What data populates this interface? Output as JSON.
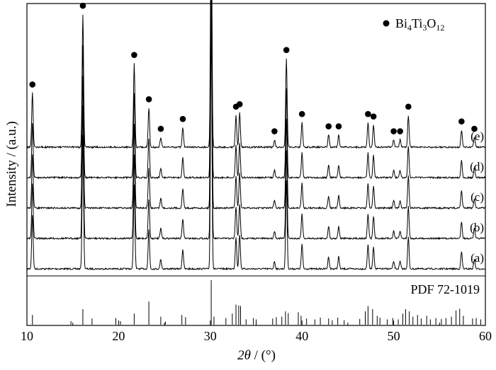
{
  "chart_data": {
    "type": "line",
    "xlabel_symbol": "2θ",
    "xlabel_unit": " / (°)",
    "ylabel": "Intensity / (a.u.)",
    "xlim": [
      10,
      60
    ],
    "xticks": [
      10,
      20,
      30,
      40,
      50,
      60
    ],
    "grid": false,
    "legend": {
      "position": "top-right",
      "marker": "filled-circle",
      "text_parts": [
        "Bi",
        "4",
        "Ti",
        "3",
        "O",
        "12"
      ]
    },
    "peaks": [
      {
        "x": 10.6,
        "h": 0.22
      },
      {
        "x": 16.1,
        "h": 0.54
      },
      {
        "x": 21.7,
        "h": 0.34
      },
      {
        "x": 23.3,
        "h": 0.16
      },
      {
        "x": 24.6,
        "h": 0.04
      },
      {
        "x": 27.0,
        "h": 0.08
      },
      {
        "x": 30.1,
        "h": 1.0
      },
      {
        "x": 32.8,
        "h": 0.13
      },
      {
        "x": 33.2,
        "h": 0.14
      },
      {
        "x": 37.0,
        "h": 0.03
      },
      {
        "x": 38.3,
        "h": 0.36
      },
      {
        "x": 40.0,
        "h": 0.1
      },
      {
        "x": 42.9,
        "h": 0.05
      },
      {
        "x": 44.0,
        "h": 0.05
      },
      {
        "x": 47.2,
        "h": 0.1
      },
      {
        "x": 47.8,
        "h": 0.09
      },
      {
        "x": 50.0,
        "h": 0.03
      },
      {
        "x": 50.7,
        "h": 0.03
      },
      {
        "x": 51.6,
        "h": 0.13
      },
      {
        "x": 57.4,
        "h": 0.07
      },
      {
        "x": 58.8,
        "h": 0.04
      }
    ],
    "series": [
      {
        "name": "(a)",
        "labelled": false
      },
      {
        "name": "(b)",
        "labelled": false
      },
      {
        "name": "(c)",
        "labelled": false
      },
      {
        "name": "(d)",
        "labelled": false
      },
      {
        "name": "(e)",
        "labelled": true
      }
    ],
    "reference": {
      "name": "PDF 72-1019",
      "lines": [
        {
          "x": 10.6,
          "h": 0.22
        },
        {
          "x": 14.8,
          "h": 0.08
        },
        {
          "x": 16.1,
          "h": 0.35
        },
        {
          "x": 17.1,
          "h": 0.14
        },
        {
          "x": 19.7,
          "h": 0.15
        },
        {
          "x": 20.2,
          "h": 0.08
        },
        {
          "x": 21.7,
          "h": 0.25
        },
        {
          "x": 23.3,
          "h": 0.52
        },
        {
          "x": 24.6,
          "h": 0.18
        },
        {
          "x": 25.1,
          "h": 0.07
        },
        {
          "x": 26.9,
          "h": 0.22
        },
        {
          "x": 27.3,
          "h": 0.17
        },
        {
          "x": 30.1,
          "h": 1.0
        },
        {
          "x": 30.4,
          "h": 0.18
        },
        {
          "x": 31.7,
          "h": 0.15
        },
        {
          "x": 32.4,
          "h": 0.25
        },
        {
          "x": 32.8,
          "h": 0.45
        },
        {
          "x": 33.1,
          "h": 0.43
        },
        {
          "x": 33.3,
          "h": 0.42
        },
        {
          "x": 33.9,
          "h": 0.12
        },
        {
          "x": 34.7,
          "h": 0.15
        },
        {
          "x": 35.0,
          "h": 0.12
        },
        {
          "x": 36.8,
          "h": 0.14
        },
        {
          "x": 37.2,
          "h": 0.17
        },
        {
          "x": 37.8,
          "h": 0.18
        },
        {
          "x": 38.2,
          "h": 0.3
        },
        {
          "x": 38.5,
          "h": 0.26
        },
        {
          "x": 39.6,
          "h": 0.28
        },
        {
          "x": 39.9,
          "h": 0.2
        },
        {
          "x": 40.5,
          "h": 0.14
        },
        {
          "x": 41.4,
          "h": 0.12
        },
        {
          "x": 42.0,
          "h": 0.16
        },
        {
          "x": 42.9,
          "h": 0.14
        },
        {
          "x": 43.3,
          "h": 0.1
        },
        {
          "x": 43.9,
          "h": 0.16
        },
        {
          "x": 44.6,
          "h": 0.1
        },
        {
          "x": 46.3,
          "h": 0.13
        },
        {
          "x": 46.9,
          "h": 0.3
        },
        {
          "x": 47.2,
          "h": 0.42
        },
        {
          "x": 47.7,
          "h": 0.35
        },
        {
          "x": 48.2,
          "h": 0.2
        },
        {
          "x": 48.5,
          "h": 0.16
        },
        {
          "x": 49.3,
          "h": 0.12
        },
        {
          "x": 49.9,
          "h": 0.15
        },
        {
          "x": 50.5,
          "h": 0.12
        },
        {
          "x": 51.0,
          "h": 0.25
        },
        {
          "x": 51.3,
          "h": 0.35
        },
        {
          "x": 51.7,
          "h": 0.3
        },
        {
          "x": 52.1,
          "h": 0.18
        },
        {
          "x": 52.6,
          "h": 0.22
        },
        {
          "x": 53.0,
          "h": 0.14
        },
        {
          "x": 53.6,
          "h": 0.2
        },
        {
          "x": 54.0,
          "h": 0.12
        },
        {
          "x": 54.6,
          "h": 0.15
        },
        {
          "x": 55.2,
          "h": 0.13
        },
        {
          "x": 55.7,
          "h": 0.15
        },
        {
          "x": 56.3,
          "h": 0.18
        },
        {
          "x": 56.8,
          "h": 0.32
        },
        {
          "x": 57.2,
          "h": 0.36
        },
        {
          "x": 57.6,
          "h": 0.2
        },
        {
          "x": 58.6,
          "h": 0.14
        },
        {
          "x": 59.0,
          "h": 0.15
        },
        {
          "x": 59.5,
          "h": 0.12
        }
      ]
    },
    "colors": {
      "line": "#000000",
      "marker": "#000000"
    }
  }
}
